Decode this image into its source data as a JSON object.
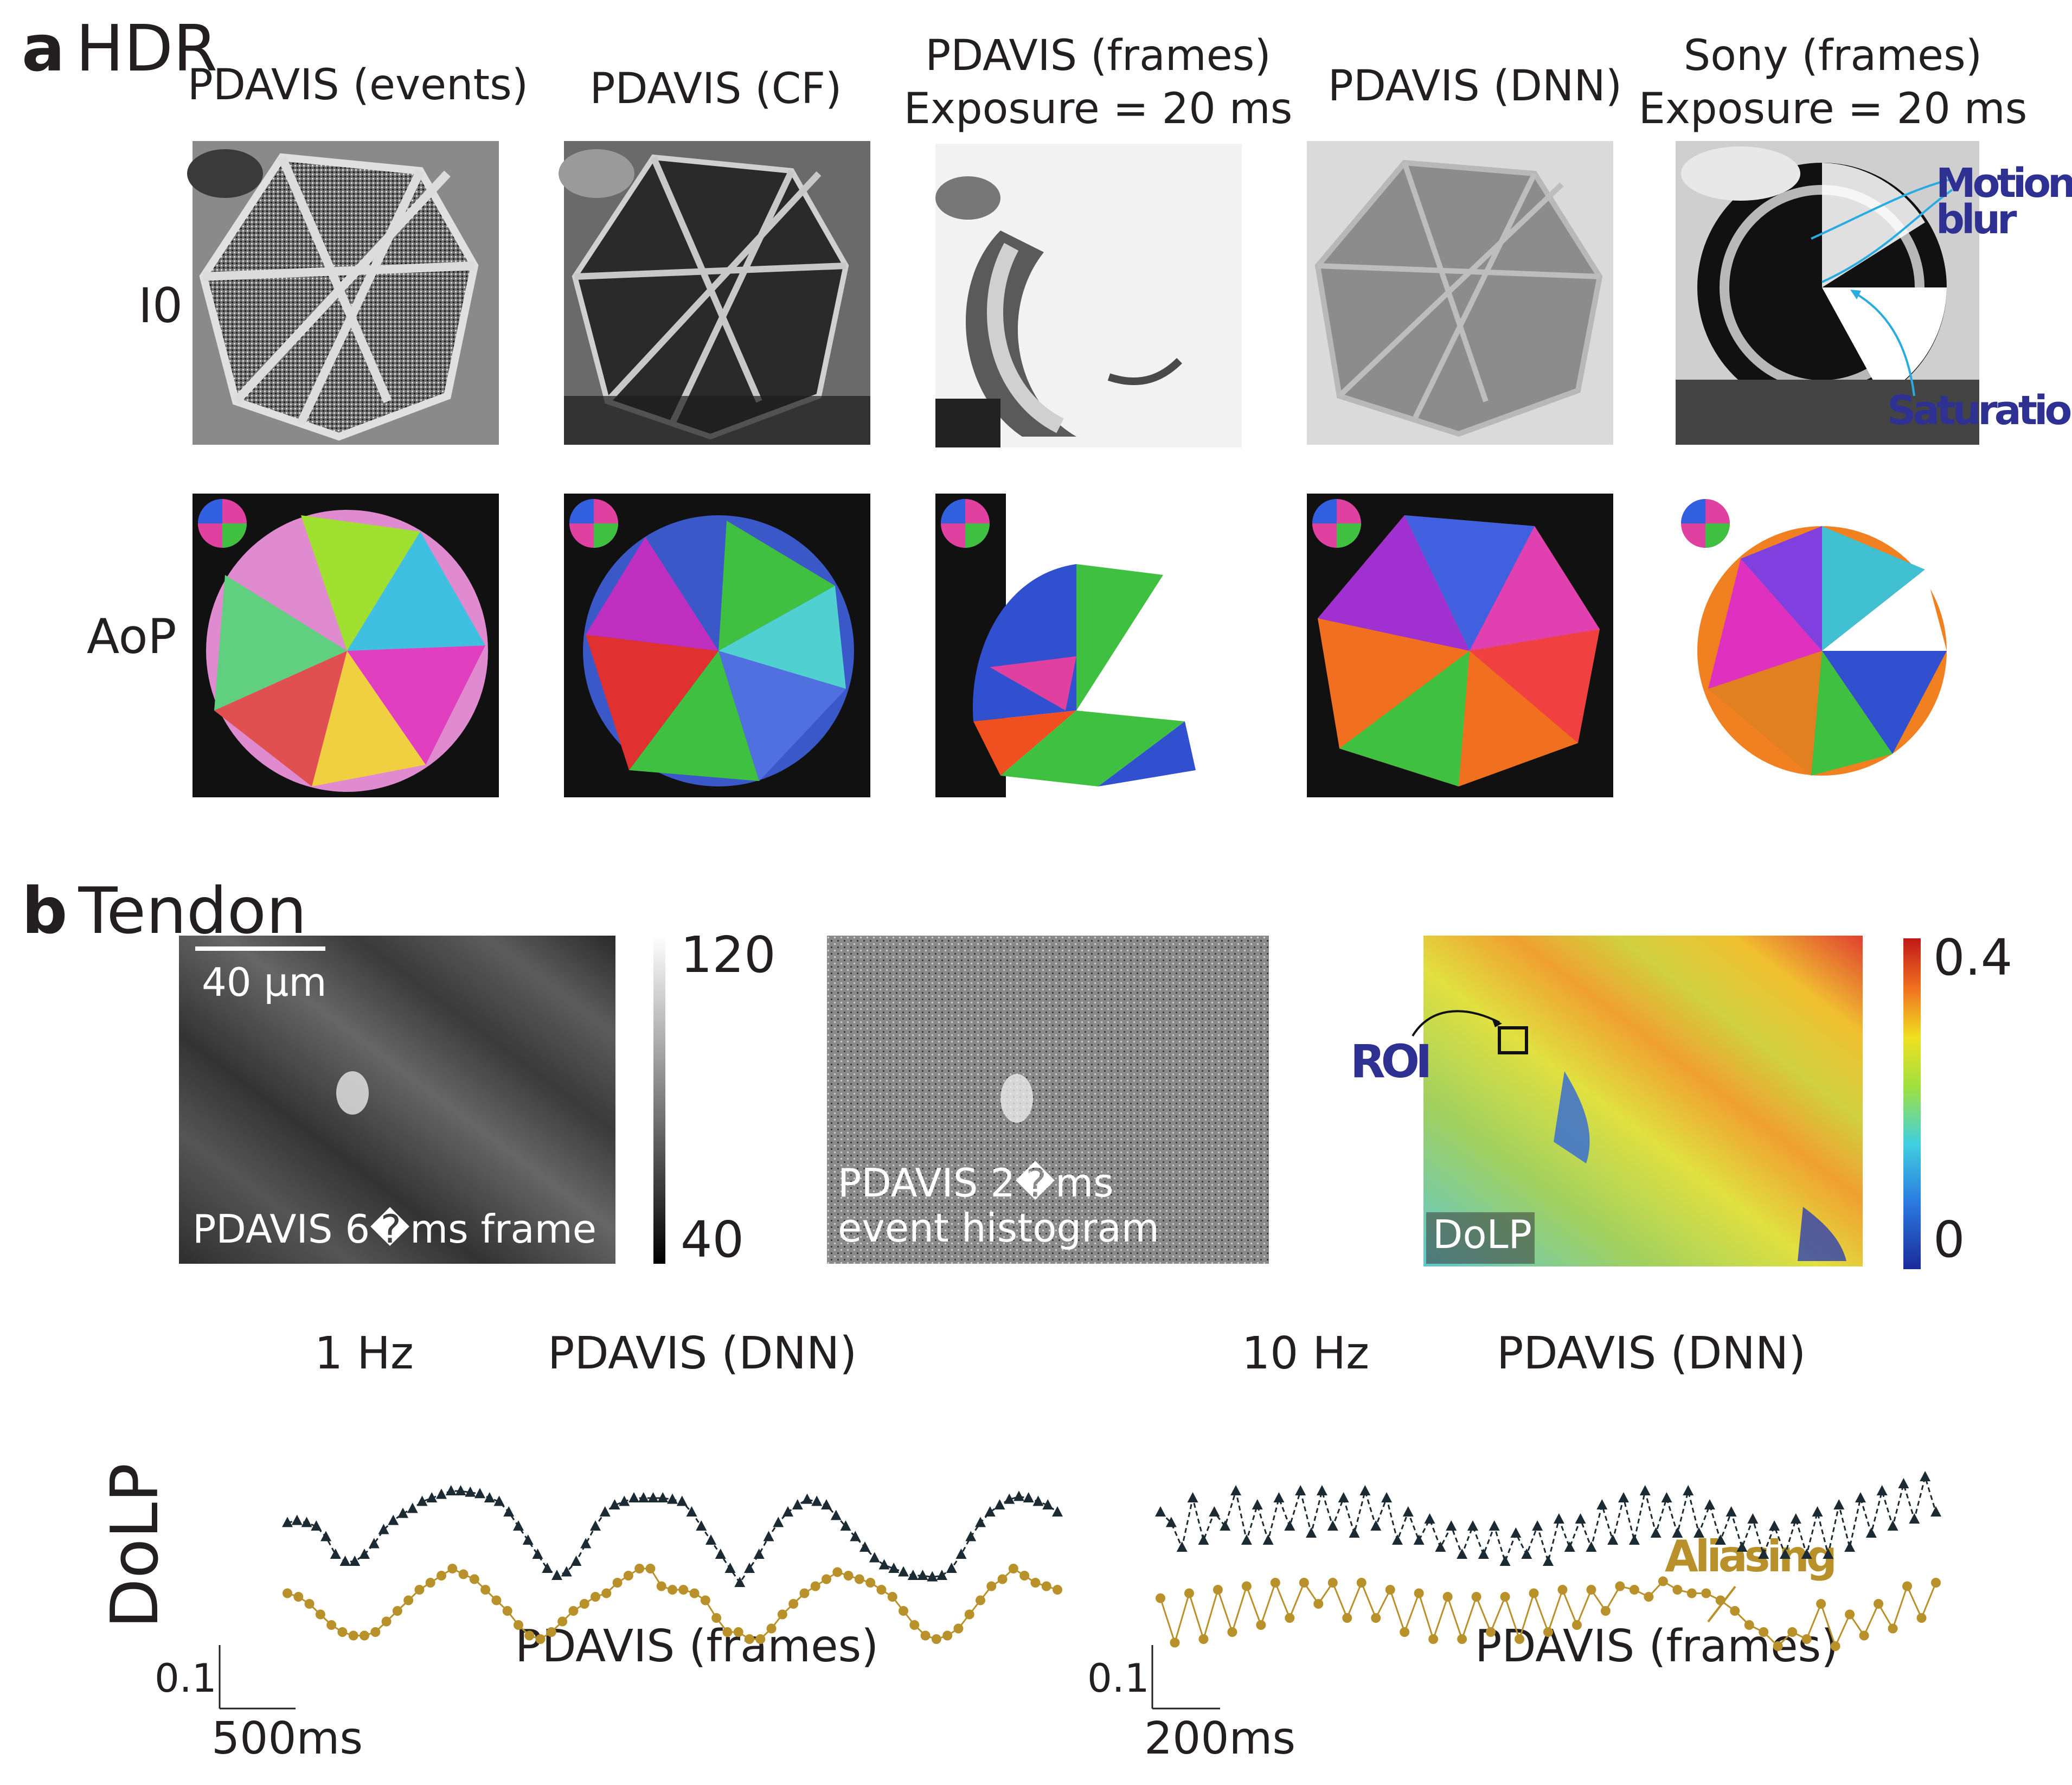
{
  "panel_a": {
    "letter": "a",
    "title": "HDR",
    "columns": [
      {
        "line1": "PDAVIS (events)",
        "line2": ""
      },
      {
        "line1": "PDAVIS (CF)",
        "line2": ""
      },
      {
        "line1": "PDAVIS (frames)",
        "line2": "Exposure = 20 ms"
      },
      {
        "line1": "PDAVIS (DNN)",
        "line2": ""
      },
      {
        "line1": "Sony (frames)",
        "line2": "Exposure = 20 ms"
      }
    ],
    "rows": [
      "I0",
      "AoP"
    ],
    "annotations": {
      "motion_blur": "Motion blur",
      "saturation": "Saturation"
    },
    "annotation_color": "#2e3192"
  },
  "panel_b": {
    "letter": "b",
    "title": "Tendon",
    "frame_label": "PDAVIS 6�ms frame",
    "scalebar_label": "40 µm",
    "gray_colorbar": {
      "max": "120",
      "min": "40"
    },
    "hist_label_line1": "PDAVIS  2�ms",
    "hist_label_line2": "event histogram",
    "dolp_label": "DoLP",
    "roi_label": "ROI",
    "jet_colorbar": {
      "max": "0.4",
      "min": "0"
    },
    "y_axis_label": "DoLP"
  },
  "chart_data": [
    {
      "type": "line",
      "title": "1 Hz",
      "ylabel": "DoLP",
      "scalebar_x": "500ms",
      "scalebar_y": "0.1",
      "series": [
        {
          "name": "PDAVIS (DNN)",
          "color": "#1c2b33",
          "marker": "triangle",
          "dash": true,
          "values": [
            0.255,
            0.258,
            0.255,
            0.25,
            0.235,
            0.21,
            0.2,
            0.2,
            0.21,
            0.225,
            0.245,
            0.258,
            0.268,
            0.275,
            0.285,
            0.29,
            0.295,
            0.3,
            0.3,
            0.298,
            0.296,
            0.29,
            0.285,
            0.27,
            0.25,
            0.23,
            0.21,
            0.19,
            0.18,
            0.185,
            0.2,
            0.225,
            0.25,
            0.27,
            0.28,
            0.285,
            0.29,
            0.29,
            0.29,
            0.29,
            0.288,
            0.285,
            0.27,
            0.25,
            0.23,
            0.21,
            0.19,
            0.17,
            0.19,
            0.21,
            0.235,
            0.255,
            0.27,
            0.28,
            0.288,
            0.285,
            0.28,
            0.265,
            0.25,
            0.235,
            0.22,
            0.205,
            0.195,
            0.19,
            0.185,
            0.18,
            0.18,
            0.178,
            0.18,
            0.19,
            0.21,
            0.235,
            0.255,
            0.27,
            0.28,
            0.288,
            0.292,
            0.29,
            0.285,
            0.28,
            0.27
          ]
        },
        {
          "name": "PDAVIS (frames)",
          "color": "#b8912a",
          "marker": "circle",
          "dash": false,
          "values": [
            0.155,
            0.15,
            0.14,
            0.125,
            0.11,
            0.1,
            0.095,
            0.095,
            0.1,
            0.115,
            0.13,
            0.145,
            0.16,
            0.17,
            0.18,
            0.19,
            0.182,
            0.175,
            0.16,
            0.145,
            0.13,
            0.11,
            0.095,
            0.09,
            0.1,
            0.115,
            0.13,
            0.14,
            0.15,
            0.155,
            0.17,
            0.18,
            0.19,
            0.19,
            0.165,
            0.16,
            0.16,
            0.155,
            0.145,
            0.12,
            0.1,
            0.1,
            0.09,
            0.09,
            0.105,
            0.125,
            0.14,
            0.155,
            0.165,
            0.175,
            0.185,
            0.18,
            0.175,
            0.17,
            0.16,
            0.15,
            0.13,
            0.11,
            0.095,
            0.09,
            0.095,
            0.105,
            0.125,
            0.145,
            0.165,
            0.175,
            0.19,
            0.18,
            0.17,
            0.165,
            0.16
          ]
        }
      ]
    },
    {
      "type": "line",
      "title": "10 Hz",
      "ylabel": "DoLP",
      "scalebar_x": "200ms",
      "scalebar_y": "0.1",
      "annotation": "Aliasing",
      "series": [
        {
          "name": "PDAVIS (DNN)",
          "color": "#1c2b33",
          "marker": "triangle",
          "dash": true,
          "values": [
            0.27,
            0.255,
            0.22,
            0.29,
            0.23,
            0.27,
            0.25,
            0.3,
            0.23,
            0.28,
            0.23,
            0.29,
            0.25,
            0.3,
            0.24,
            0.3,
            0.25,
            0.29,
            0.24,
            0.3,
            0.25,
            0.29,
            0.23,
            0.27,
            0.23,
            0.26,
            0.22,
            0.25,
            0.21,
            0.25,
            0.21,
            0.25,
            0.2,
            0.24,
            0.21,
            0.25,
            0.2,
            0.26,
            0.22,
            0.26,
            0.22,
            0.28,
            0.23,
            0.29,
            0.23,
            0.3,
            0.24,
            0.29,
            0.24,
            0.3,
            0.24,
            0.28,
            0.23,
            0.27,
            0.22,
            0.26,
            0.21,
            0.25,
            0.21,
            0.26,
            0.21,
            0.27,
            0.21,
            0.28,
            0.22,
            0.29,
            0.24,
            0.3,
            0.25,
            0.31,
            0.26,
            0.32,
            0.27
          ]
        },
        {
          "name": "PDAVIS (frames)",
          "color": "#b8912a",
          "marker": "circle",
          "dash": false,
          "values": [
            0.148,
            0.085,
            0.155,
            0.09,
            0.16,
            0.1,
            0.165,
            0.11,
            0.17,
            0.12,
            0.17,
            0.14,
            0.17,
            0.12,
            0.17,
            0.12,
            0.16,
            0.1,
            0.155,
            0.09,
            0.15,
            0.09,
            0.15,
            0.1,
            0.15,
            0.09,
            0.155,
            0.1,
            0.16,
            0.11,
            0.16,
            0.13,
            0.165,
            0.16,
            0.15,
            0.172,
            0.16,
            0.155,
            0.155,
            0.145,
            0.13,
            0.11,
            0.1,
            0.08,
            0.1,
            0.09,
            0.14,
            0.08,
            0.125,
            0.095,
            0.14,
            0.105,
            0.165,
            0.12,
            0.17
          ]
        }
      ]
    }
  ]
}
